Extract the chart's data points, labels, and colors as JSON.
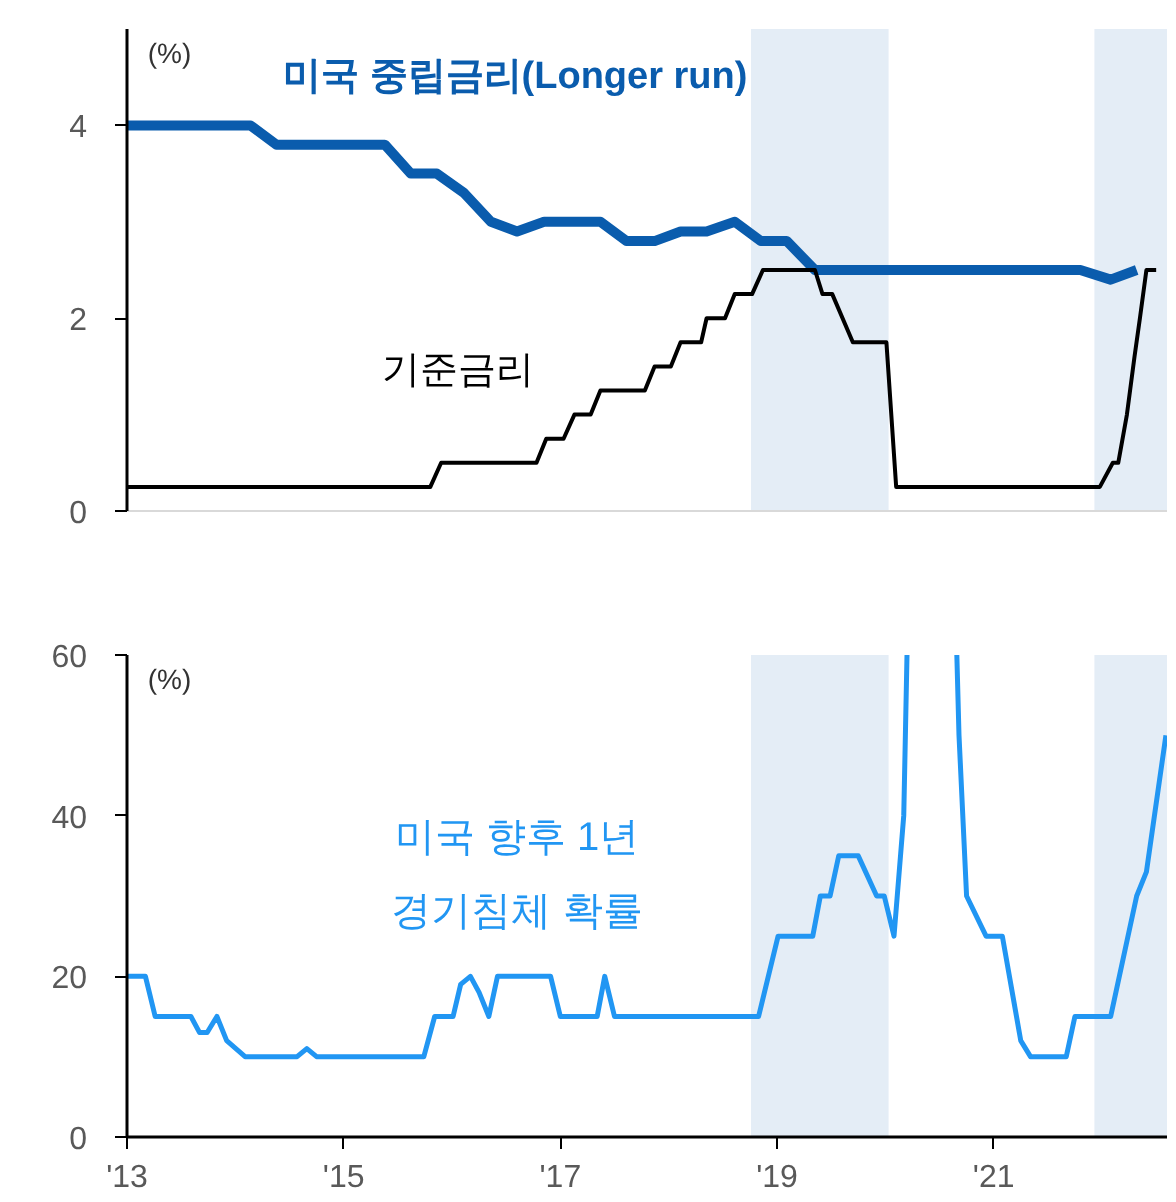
{
  "chart_data": [
    {
      "type": "line",
      "ylabel": "(%)",
      "xlim": [
        2013,
        2022.6
      ],
      "ylim": [
        0,
        5
      ],
      "yticks": [
        0,
        2,
        4
      ],
      "tick_labels": "y",
      "grid": false,
      "bands": [
        {
          "axis": "x",
          "from": 2018.76,
          "to": 2020.03,
          "color": "#e4edf6"
        },
        {
          "axis": "x",
          "from": 2021.93,
          "to": 2022.6,
          "color": "#e4edf6"
        }
      ],
      "series": [
        {
          "name": "미국 중립금리(Longer run)",
          "color": "#0a5cad",
          "x": [
            2013.0,
            2014.14,
            2014.38,
            2015.38,
            2015.62,
            2015.86,
            2016.11,
            2016.36,
            2016.6,
            2016.85,
            2017.37,
            2017.61,
            2017.87,
            2018.11,
            2018.35,
            2018.61,
            2018.85,
            2019.09,
            2019.35,
            2021.8,
            2022.08,
            2022.32
          ],
          "values": [
            4.0,
            4.0,
            3.8,
            3.8,
            3.5,
            3.5,
            3.3,
            3.0,
            2.9,
            3.0,
            3.0,
            2.8,
            2.8,
            2.9,
            2.9,
            3.0,
            2.8,
            2.8,
            2.5,
            2.5,
            2.4,
            2.5
          ]
        },
        {
          "name": "기준금리",
          "color": "#000000",
          "x": [
            2013.0,
            2015.8,
            2015.9,
            2016.78,
            2016.87,
            2017.03,
            2017.13,
            2017.28,
            2017.37,
            2017.78,
            2017.87,
            2018.02,
            2018.11,
            2018.3,
            2018.35,
            2018.52,
            2018.61,
            2018.77,
            2018.87,
            2019.35,
            2019.42,
            2019.51,
            2019.7,
            2020.01,
            2020.1,
            2021.98,
            2022.1,
            2022.15,
            2022.23,
            2022.3,
            2022.35,
            2022.41,
            2022.5
          ],
          "values": [
            0.25,
            0.25,
            0.5,
            0.5,
            0.75,
            0.75,
            1.0,
            1.0,
            1.25,
            1.25,
            1.5,
            1.5,
            1.75,
            1.75,
            2.0,
            2.0,
            2.25,
            2.25,
            2.5,
            2.5,
            2.25,
            2.25,
            1.75,
            1.75,
            0.25,
            0.25,
            0.5,
            0.5,
            1.0,
            1.6,
            2.0,
            2.5,
            2.5
          ]
        }
      ]
    },
    {
      "type": "line",
      "ylabel": "(%)",
      "xlim": [
        2013,
        2022.6
      ],
      "ylim": [
        0,
        60
      ],
      "yticks": [
        0,
        20,
        40,
        60
      ],
      "grid": false,
      "xticks": [
        {
          "value": 2013,
          "label": "'13"
        },
        {
          "value": 2015,
          "label": "'15"
        },
        {
          "value": 2017,
          "label": "'17"
        },
        {
          "value": 2019,
          "label": "'19"
        },
        {
          "value": 2021,
          "label": "'21"
        }
      ],
      "bands": [
        {
          "axis": "x",
          "from": 2018.76,
          "to": 2020.03,
          "color": "#e4edf6"
        },
        {
          "axis": "x",
          "from": 2021.93,
          "to": 2022.6,
          "color": "#e4edf6"
        }
      ],
      "series": [
        {
          "name": "미국 향후 1년\n경기침체 확률",
          "color": "#2196f3",
          "x": [
            2013.0,
            2013.17,
            2013.26,
            2013.59,
            2013.67,
            2013.74,
            2013.83,
            2013.92,
            2014.09,
            2014.57,
            2014.66,
            2014.75,
            2015.74,
            2015.84,
            2016.01,
            2016.08,
            2016.17,
            2016.25,
            2016.34,
            2016.42,
            2016.91,
            2017.0,
            2017.34,
            2017.41,
            2017.5,
            2018.83,
            2019.01,
            2019.33,
            2019.4,
            2019.49,
            2019.57,
            2019.75,
            2019.92,
            2019.99,
            2020.08,
            2020.17,
            2020.2,
            2020.43,
            2020.66,
            2020.68,
            2020.75,
            2020.93,
            2021.08,
            2021.25,
            2021.34,
            2021.67,
            2021.75,
            2022.08,
            2022.32,
            2022.41,
            2022.59
          ],
          "values": [
            20,
            20,
            15,
            15,
            13,
            13,
            15,
            12,
            10,
            10,
            11,
            10,
            10,
            15,
            15,
            19,
            20,
            18,
            15,
            20,
            20,
            15,
            15,
            20,
            15,
            15,
            25,
            25,
            30,
            30,
            35,
            35,
            30,
            30,
            25,
            40,
            60,
            null,
            60,
            50,
            30,
            25,
            25,
            12,
            10,
            10,
            15,
            15,
            30,
            33,
            50
          ]
        }
      ]
    }
  ]
}
